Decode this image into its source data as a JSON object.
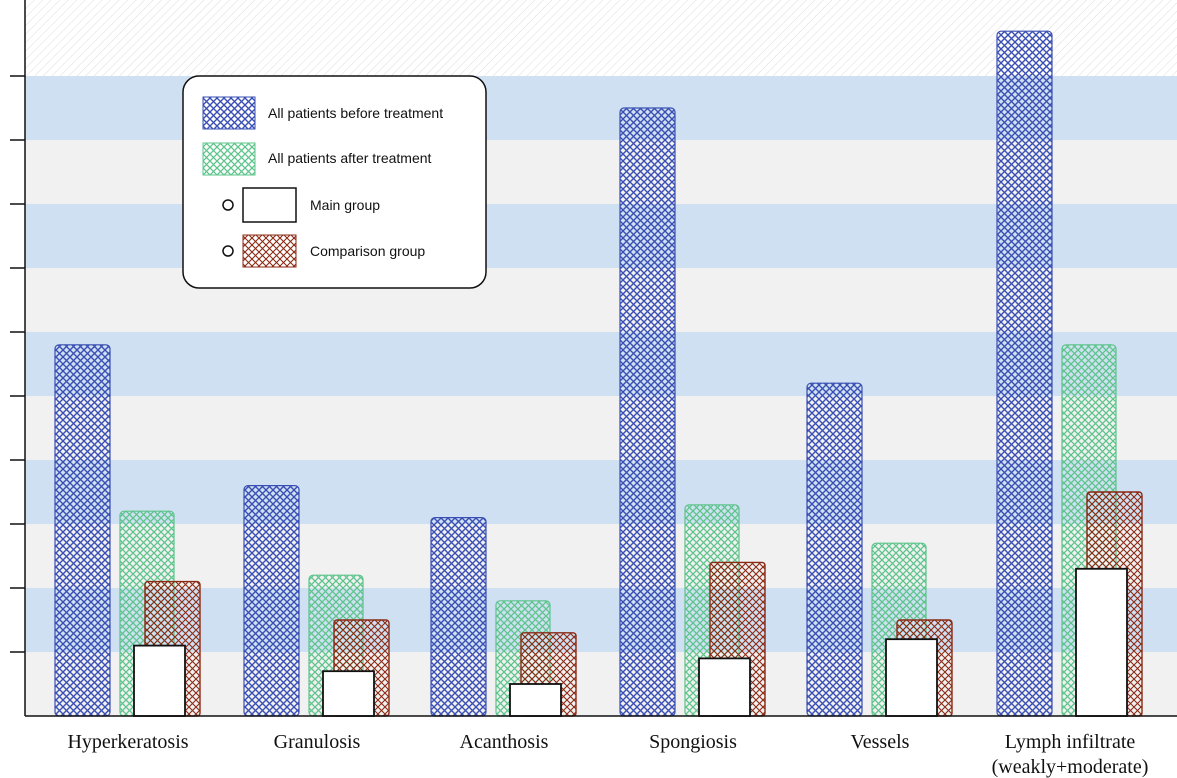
{
  "chart_data": {
    "type": "bar",
    "title": "",
    "xlabel": "",
    "ylabel": "",
    "ylim": [
      0,
      11
    ],
    "grid": "alternating horizontal bands",
    "legend_position": "top-left",
    "categories": [
      [
        "Hyperkeratosis"
      ],
      [
        "Granulosis"
      ],
      [
        "Acanthosis"
      ],
      [
        "Spongiosis"
      ],
      [
        "Vessels"
      ],
      [
        "Lymph infiltrate",
        "(weakly+moderate)"
      ]
    ],
    "series": [
      {
        "name": "All patients before treatment",
        "values": [
          5.8,
          3.6,
          3.1,
          9.5,
          5.2,
          10.7
        ]
      },
      {
        "name": "All patients after treatment",
        "values": [
          3.2,
          2.2,
          1.8,
          3.3,
          2.7,
          5.8
        ]
      },
      {
        "name": "Main group",
        "values": [
          1.1,
          0.7,
          0.5,
          0.9,
          1.2,
          2.3
        ]
      },
      {
        "name": "Comparison group",
        "values": [
          2.1,
          1.5,
          1.3,
          2.4,
          1.5,
          3.5
        ]
      }
    ]
  },
  "colors": {
    "before": "#3a4fb3",
    "after": "#5cc48a",
    "main": "#111111",
    "comparison": "#8b2a14",
    "band_blue": "#cfe0f2",
    "band_gray": "#f1f1f1"
  }
}
